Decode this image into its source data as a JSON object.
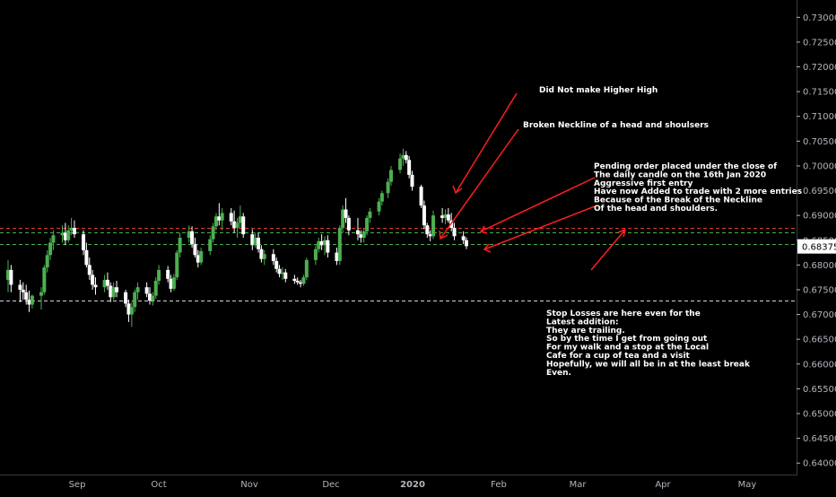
{
  "chart_data": {
    "type": "candlestick",
    "x_labels": [
      "Sep",
      "Oct",
      "Nov",
      "Dec",
      "2020",
      "Feb",
      "Mar",
      "Apr",
      "May"
    ],
    "y_ticks": [
      "0.73000",
      "0.72500",
      "0.72000",
      "0.71500",
      "0.71000",
      "0.70500",
      "0.70000",
      "0.69500",
      "0.69000",
      "0.68500",
      "0.68000",
      "0.67500",
      "0.67000",
      "0.66500",
      "0.66000",
      "0.65500",
      "0.65000",
      "0.64500",
      "0.64000"
    ],
    "ylim": [
      0.6375,
      0.7335
    ],
    "current_price": "0.68375",
    "colors": {
      "background": "#000000",
      "up_candle": "#4caf50",
      "down_candle": "#ffffff",
      "arrows": "#ff1e1e",
      "price_label_bg": "#ffffff",
      "price_label_text": "#000000"
    },
    "horizontal_levels": [
      {
        "value": 0.6875,
        "color": "#e53935",
        "style": "dashed"
      },
      {
        "value": 0.6866,
        "color": "#4caf50",
        "style": "dashed"
      },
      {
        "value": 0.6843,
        "color": "#4caf50",
        "style": "dashed"
      },
      {
        "value": 0.6728,
        "color": "#d1d4dc",
        "style": "dashed"
      }
    ],
    "candles": [
      {
        "date": "2019-08-22",
        "o": 0.677,
        "h": 0.681,
        "l": 0.6745,
        "c": 0.679
      },
      {
        "date": "2019-08-23",
        "o": 0.679,
        "h": 0.68,
        "l": 0.6745,
        "c": 0.676
      },
      {
        "date": "2019-08-26",
        "o": 0.676,
        "h": 0.677,
        "l": 0.6725,
        "c": 0.675
      },
      {
        "date": "2019-08-27",
        "o": 0.675,
        "h": 0.6765,
        "l": 0.673,
        "c": 0.6745
      },
      {
        "date": "2019-08-28",
        "o": 0.6745,
        "h": 0.676,
        "l": 0.672,
        "c": 0.673
      },
      {
        "date": "2019-08-29",
        "o": 0.673,
        "h": 0.6748,
        "l": 0.6705,
        "c": 0.672
      },
      {
        "date": "2019-08-30",
        "o": 0.672,
        "h": 0.674,
        "l": 0.6712,
        "c": 0.6738
      },
      {
        "date": "2019-09-02",
        "o": 0.6738,
        "h": 0.6755,
        "l": 0.671,
        "c": 0.6745
      },
      {
        "date": "2019-09-03",
        "o": 0.6745,
        "h": 0.68,
        "l": 0.674,
        "c": 0.6795
      },
      {
        "date": "2019-09-04",
        "o": 0.6795,
        "h": 0.683,
        "l": 0.6785,
        "c": 0.682
      },
      {
        "date": "2019-09-05",
        "o": 0.682,
        "h": 0.6855,
        "l": 0.681,
        "c": 0.6845
      },
      {
        "date": "2019-09-06",
        "o": 0.6845,
        "h": 0.687,
        "l": 0.683,
        "c": 0.686
      },
      {
        "date": "2019-09-09",
        "o": 0.686,
        "h": 0.688,
        "l": 0.6845,
        "c": 0.6865
      },
      {
        "date": "2019-09-10",
        "o": 0.6865,
        "h": 0.6885,
        "l": 0.684,
        "c": 0.685
      },
      {
        "date": "2019-09-11",
        "o": 0.685,
        "h": 0.688,
        "l": 0.6845,
        "c": 0.687
      },
      {
        "date": "2019-09-12",
        "o": 0.687,
        "h": 0.6895,
        "l": 0.686,
        "c": 0.6875
      },
      {
        "date": "2019-09-13",
        "o": 0.6875,
        "h": 0.689,
        "l": 0.6855,
        "c": 0.6862
      },
      {
        "date": "2019-09-16",
        "o": 0.6862,
        "h": 0.687,
        "l": 0.682,
        "c": 0.683
      },
      {
        "date": "2019-09-17",
        "o": 0.683,
        "h": 0.6845,
        "l": 0.6795,
        "c": 0.68
      },
      {
        "date": "2019-09-18",
        "o": 0.68,
        "h": 0.6815,
        "l": 0.677,
        "c": 0.678
      },
      {
        "date": "2019-09-19",
        "o": 0.678,
        "h": 0.679,
        "l": 0.675,
        "c": 0.676
      },
      {
        "date": "2019-09-20",
        "o": 0.676,
        "h": 0.6775,
        "l": 0.674,
        "c": 0.6755
      },
      {
        "date": "2019-09-23",
        "o": 0.6755,
        "h": 0.678,
        "l": 0.6745,
        "c": 0.677
      },
      {
        "date": "2019-09-24",
        "o": 0.677,
        "h": 0.6785,
        "l": 0.675,
        "c": 0.6758
      },
      {
        "date": "2019-09-25",
        "o": 0.6758,
        "h": 0.6765,
        "l": 0.6725,
        "c": 0.6735
      },
      {
        "date": "2019-09-26",
        "o": 0.6735,
        "h": 0.6765,
        "l": 0.673,
        "c": 0.6755
      },
      {
        "date": "2019-09-27",
        "o": 0.6755,
        "h": 0.6768,
        "l": 0.6735,
        "c": 0.6745
      },
      {
        "date": "2019-09-30",
        "o": 0.6745,
        "h": 0.675,
        "l": 0.6715,
        "c": 0.6722
      },
      {
        "date": "2019-10-01",
        "o": 0.6722,
        "h": 0.673,
        "l": 0.6685,
        "c": 0.67
      },
      {
        "date": "2019-10-02",
        "o": 0.67,
        "h": 0.6725,
        "l": 0.6675,
        "c": 0.6715
      },
      {
        "date": "2019-10-03",
        "o": 0.6715,
        "h": 0.675,
        "l": 0.6705,
        "c": 0.6745
      },
      {
        "date": "2019-10-04",
        "o": 0.6745,
        "h": 0.6765,
        "l": 0.673,
        "c": 0.6755
      },
      {
        "date": "2019-10-07",
        "o": 0.6755,
        "h": 0.6765,
        "l": 0.6735,
        "c": 0.6742
      },
      {
        "date": "2019-10-08",
        "o": 0.6742,
        "h": 0.6755,
        "l": 0.672,
        "c": 0.6728
      },
      {
        "date": "2019-10-09",
        "o": 0.6728,
        "h": 0.6745,
        "l": 0.6718,
        "c": 0.6738
      },
      {
        "date": "2019-10-10",
        "o": 0.6738,
        "h": 0.6775,
        "l": 0.6732,
        "c": 0.6768
      },
      {
        "date": "2019-10-11",
        "o": 0.6768,
        "h": 0.68,
        "l": 0.676,
        "c": 0.679
      },
      {
        "date": "2019-10-14",
        "o": 0.679,
        "h": 0.6798,
        "l": 0.6765,
        "c": 0.6772
      },
      {
        "date": "2019-10-15",
        "o": 0.6772,
        "h": 0.678,
        "l": 0.6745,
        "c": 0.6752
      },
      {
        "date": "2019-10-16",
        "o": 0.6752,
        "h": 0.6782,
        "l": 0.6748,
        "c": 0.6775
      },
      {
        "date": "2019-10-17",
        "o": 0.6775,
        "h": 0.683,
        "l": 0.677,
        "c": 0.6825
      },
      {
        "date": "2019-10-18",
        "o": 0.6825,
        "h": 0.6865,
        "l": 0.6815,
        "c": 0.6855
      },
      {
        "date": "2019-10-21",
        "o": 0.6855,
        "h": 0.688,
        "l": 0.6845,
        "c": 0.6868
      },
      {
        "date": "2019-10-22",
        "o": 0.6868,
        "h": 0.6878,
        "l": 0.6835,
        "c": 0.6842
      },
      {
        "date": "2019-10-23",
        "o": 0.6842,
        "h": 0.6855,
        "l": 0.6815,
        "c": 0.682
      },
      {
        "date": "2019-10-24",
        "o": 0.682,
        "h": 0.683,
        "l": 0.6795,
        "c": 0.6805
      },
      {
        "date": "2019-10-25",
        "o": 0.6805,
        "h": 0.6835,
        "l": 0.68,
        "c": 0.6828
      },
      {
        "date": "2019-10-28",
        "o": 0.6828,
        "h": 0.686,
        "l": 0.682,
        "c": 0.6852
      },
      {
        "date": "2019-10-29",
        "o": 0.6852,
        "h": 0.6885,
        "l": 0.6845,
        "c": 0.6878
      },
      {
        "date": "2019-10-30",
        "o": 0.6878,
        "h": 0.6905,
        "l": 0.687,
        "c": 0.6898
      },
      {
        "date": "2019-10-31",
        "o": 0.6898,
        "h": 0.6925,
        "l": 0.688,
        "c": 0.689
      },
      {
        "date": "2019-11-01",
        "o": 0.689,
        "h": 0.6915,
        "l": 0.687,
        "c": 0.6905
      },
      {
        "date": "2019-11-04",
        "o": 0.6905,
        "h": 0.6915,
        "l": 0.688,
        "c": 0.6888
      },
      {
        "date": "2019-11-05",
        "o": 0.6888,
        "h": 0.691,
        "l": 0.6865,
        "c": 0.6875
      },
      {
        "date": "2019-11-06",
        "o": 0.6875,
        "h": 0.6895,
        "l": 0.6855,
        "c": 0.6885
      },
      {
        "date": "2019-11-07",
        "o": 0.6885,
        "h": 0.692,
        "l": 0.6875,
        "c": 0.6898
      },
      {
        "date": "2019-11-08",
        "o": 0.6898,
        "h": 0.6905,
        "l": 0.6855,
        "c": 0.6862
      },
      {
        "date": "2019-11-11",
        "o": 0.6862,
        "h": 0.6872,
        "l": 0.683,
        "c": 0.684
      },
      {
        "date": "2019-11-12",
        "o": 0.684,
        "h": 0.6865,
        "l": 0.6835,
        "c": 0.6855
      },
      {
        "date": "2019-11-13",
        "o": 0.6855,
        "h": 0.6865,
        "l": 0.6825,
        "c": 0.6832
      },
      {
        "date": "2019-11-14",
        "o": 0.6832,
        "h": 0.684,
        "l": 0.6805,
        "c": 0.6812
      },
      {
        "date": "2019-11-15",
        "o": 0.6812,
        "h": 0.683,
        "l": 0.68,
        "c": 0.6822
      },
      {
        "date": "2019-11-18",
        "o": 0.6822,
        "h": 0.6832,
        "l": 0.68,
        "c": 0.6808
      },
      {
        "date": "2019-11-19",
        "o": 0.6808,
        "h": 0.6815,
        "l": 0.6785,
        "c": 0.6792
      },
      {
        "date": "2019-11-20",
        "o": 0.6792,
        "h": 0.68,
        "l": 0.6775,
        "c": 0.6782
      },
      {
        "date": "2019-11-21",
        "o": 0.6782,
        "h": 0.6795,
        "l": 0.677,
        "c": 0.6785
      },
      {
        "date": "2019-11-22",
        "o": 0.6785,
        "h": 0.6792,
        "l": 0.6765,
        "c": 0.6772
      },
      {
        "date": "2019-11-25",
        "o": 0.6772,
        "h": 0.678,
        "l": 0.6762,
        "c": 0.6768
      },
      {
        "date": "2019-11-26",
        "o": 0.6768,
        "h": 0.6775,
        "l": 0.676,
        "c": 0.6765
      },
      {
        "date": "2019-11-27",
        "o": 0.6765,
        "h": 0.677,
        "l": 0.6755,
        "c": 0.6762
      },
      {
        "date": "2019-11-28",
        "o": 0.6762,
        "h": 0.678,
        "l": 0.6758,
        "c": 0.6775
      },
      {
        "date": "2019-11-29",
        "o": 0.6775,
        "h": 0.6815,
        "l": 0.677,
        "c": 0.681
      },
      {
        "date": "2019-12-02",
        "o": 0.681,
        "h": 0.684,
        "l": 0.68,
        "c": 0.6832
      },
      {
        "date": "2019-12-03",
        "o": 0.6832,
        "h": 0.6855,
        "l": 0.6825,
        "c": 0.6848
      },
      {
        "date": "2019-12-04",
        "o": 0.6848,
        "h": 0.6862,
        "l": 0.683,
        "c": 0.684
      },
      {
        "date": "2019-12-05",
        "o": 0.684,
        "h": 0.6858,
        "l": 0.682,
        "c": 0.685
      },
      {
        "date": "2019-12-06",
        "o": 0.685,
        "h": 0.686,
        "l": 0.6815,
        "c": 0.6825
      },
      {
        "date": "2019-12-09",
        "o": 0.6825,
        "h": 0.6835,
        "l": 0.68,
        "c": 0.6808
      },
      {
        "date": "2019-12-10",
        "o": 0.6808,
        "h": 0.688,
        "l": 0.68,
        "c": 0.6875
      },
      {
        "date": "2019-12-11",
        "o": 0.6875,
        "h": 0.692,
        "l": 0.6865,
        "c": 0.6912
      },
      {
        "date": "2019-12-12",
        "o": 0.6912,
        "h": 0.6935,
        "l": 0.6885,
        "c": 0.6895
      },
      {
        "date": "2019-12-13",
        "o": 0.6895,
        "h": 0.69,
        "l": 0.686,
        "c": 0.687
      },
      {
        "date": "2019-12-16",
        "o": 0.687,
        "h": 0.6895,
        "l": 0.685,
        "c": 0.6862
      },
      {
        "date": "2019-12-17",
        "o": 0.6862,
        "h": 0.687,
        "l": 0.6845,
        "c": 0.6855
      },
      {
        "date": "2019-12-18",
        "o": 0.6855,
        "h": 0.6875,
        "l": 0.6845,
        "c": 0.6868
      },
      {
        "date": "2019-12-19",
        "o": 0.6868,
        "h": 0.69,
        "l": 0.686,
        "c": 0.6895
      },
      {
        "date": "2019-12-20",
        "o": 0.6895,
        "h": 0.6915,
        "l": 0.6885,
        "c": 0.6908
      },
      {
        "date": "2019-12-23",
        "o": 0.6908,
        "h": 0.6935,
        "l": 0.69,
        "c": 0.6928
      },
      {
        "date": "2019-12-24",
        "o": 0.6928,
        "h": 0.695,
        "l": 0.692,
        "c": 0.6945
      },
      {
        "date": "2019-12-26",
        "o": 0.6945,
        "h": 0.6975,
        "l": 0.6935,
        "c": 0.6968
      },
      {
        "date": "2019-12-27",
        "o": 0.6968,
        "h": 0.7,
        "l": 0.696,
        "c": 0.6992
      },
      {
        "date": "2019-12-30",
        "o": 0.6992,
        "h": 0.7025,
        "l": 0.6985,
        "c": 0.7015
      },
      {
        "date": "2019-12-31",
        "o": 0.7015,
        "h": 0.7035,
        "l": 0.7,
        "c": 0.7022
      },
      {
        "date": "2020-01-01",
        "o": 0.7022,
        "h": 0.703,
        "l": 0.7005,
        "c": 0.7012
      },
      {
        "date": "2020-01-02",
        "o": 0.7012,
        "h": 0.702,
        "l": 0.6975,
        "c": 0.6982
      },
      {
        "date": "2020-01-03",
        "o": 0.6982,
        "h": 0.699,
        "l": 0.695,
        "c": 0.6958
      },
      {
        "date": "2020-01-06",
        "o": 0.6958,
        "h": 0.6962,
        "l": 0.6915,
        "c": 0.692
      },
      {
        "date": "2020-01-07",
        "o": 0.692,
        "h": 0.693,
        "l": 0.6872,
        "c": 0.688
      },
      {
        "date": "2020-01-08",
        "o": 0.688,
        "h": 0.6885,
        "l": 0.6855,
        "c": 0.6862
      },
      {
        "date": "2020-01-09",
        "o": 0.6862,
        "h": 0.687,
        "l": 0.6848,
        "c": 0.6858
      },
      {
        "date": "2020-01-10",
        "o": 0.6858,
        "h": 0.691,
        "l": 0.6852,
        "c": 0.69
      },
      {
        "date": "2020-01-13",
        "o": 0.69,
        "h": 0.6915,
        "l": 0.6885,
        "c": 0.6895
      },
      {
        "date": "2020-01-14",
        "o": 0.6895,
        "h": 0.6912,
        "l": 0.6882,
        "c": 0.6902
      },
      {
        "date": "2020-01-15",
        "o": 0.6902,
        "h": 0.6915,
        "l": 0.6885,
        "c": 0.689
      },
      {
        "date": "2020-01-16",
        "o": 0.689,
        "h": 0.6905,
        "l": 0.6868,
        "c": 0.6875
      },
      {
        "date": "2020-01-17",
        "o": 0.6875,
        "h": 0.6885,
        "l": 0.685,
        "c": 0.6858
      },
      {
        "date": "2020-01-20",
        "o": 0.6858,
        "h": 0.6868,
        "l": 0.6842,
        "c": 0.685
      },
      {
        "date": "2020-01-21",
        "o": 0.685,
        "h": 0.6856,
        "l": 0.6832,
        "c": 0.6838
      }
    ],
    "annotations": [
      {
        "id": "higher-high",
        "lines": [
          "Did Not make Higher High"
        ]
      },
      {
        "id": "neckline",
        "lines": [
          "Broken Neckline of a head and shoulsers"
        ]
      },
      {
        "id": "pending-order",
        "lines": [
          "Pending order placed under the close of",
          "The daily candle on the 16th Jan 2020",
          "Aggressive first entry",
          "Have now Added to trade with 2 more entries",
          "Because of the Break of the Neckline",
          "Of the head and shoulders."
        ]
      },
      {
        "id": "stop-losses",
        "lines": [
          "Stop Losses are here even for the",
          "Latest addition:",
          "They are trailing.",
          "So by the time I get from going out",
          "For my walk and a stop at the Local",
          "Cafe for a cup of tea and a visit",
          "Hopefully, we will all be in at the least break",
          "Even."
        ]
      }
    ]
  }
}
